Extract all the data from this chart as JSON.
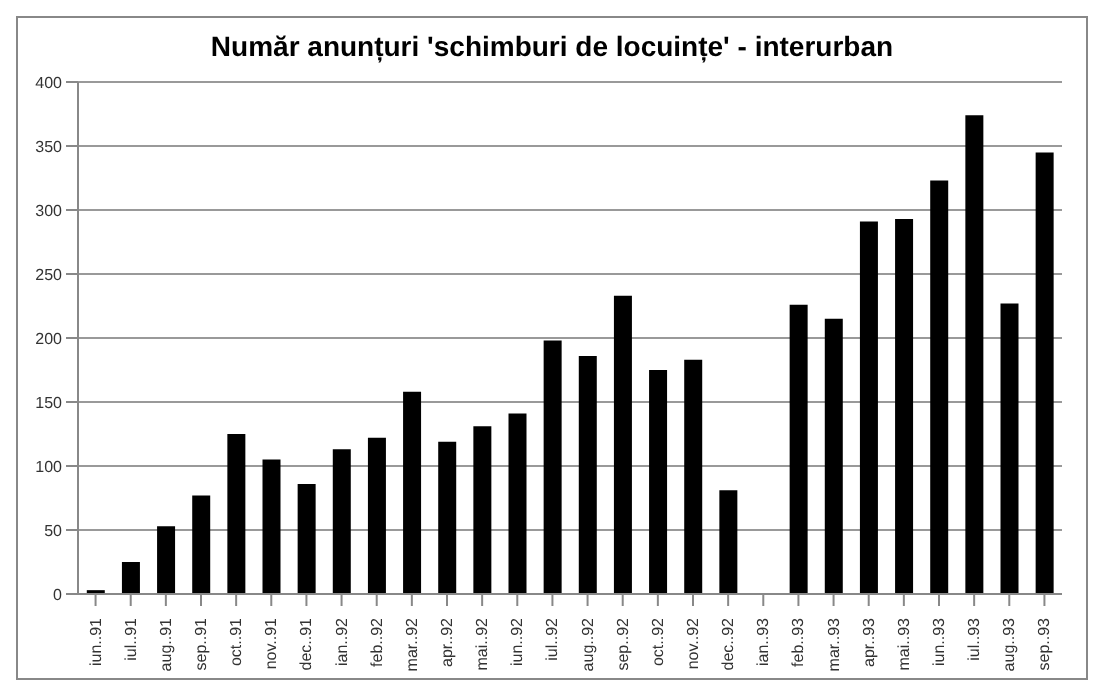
{
  "chart_data": {
    "type": "bar",
    "title": "Număr anunțuri 'schimburi de locuințe' - interurban",
    "categories": [
      "iun..91",
      "iul..91",
      "aug..91",
      "sep..91",
      "oct..91",
      "nov..91",
      "dec..91",
      "ian..92",
      "feb..92",
      "mar..92",
      "apr..92",
      "mai..92",
      "iun..92",
      "iul..92",
      "aug..92",
      "sep..92",
      "oct..92",
      "nov..92",
      "dec..92",
      "ian..93",
      "feb..93",
      "mar..93",
      "apr..93",
      "mai..93",
      "iun..93",
      "iul..93",
      "aug..93",
      "sep..93"
    ],
    "values": [
      3,
      25,
      53,
      77,
      125,
      105,
      86,
      113,
      122,
      158,
      119,
      131,
      141,
      198,
      186,
      233,
      175,
      183,
      81,
      null,
      226,
      215,
      291,
      293,
      323,
      374,
      227,
      345
    ],
    "color": "#000000",
    "ylim": [
      0,
      400
    ],
    "yticks": [
      0,
      50,
      100,
      150,
      200,
      250,
      300,
      350,
      400
    ],
    "grid": "y"
  }
}
